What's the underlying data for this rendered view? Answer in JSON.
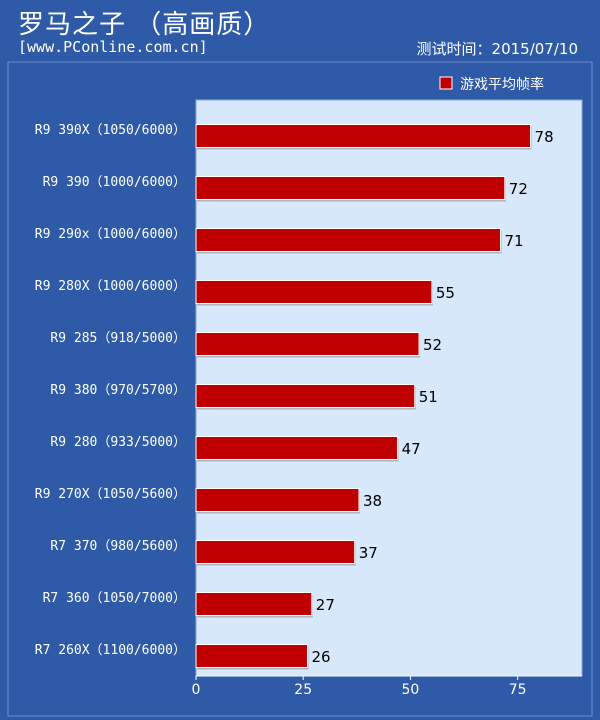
{
  "header": {
    "title": "罗马之子 （高画质）",
    "source": "[www.PConline.com.cn]",
    "test_time": "测试时间：2015/07/10"
  },
  "colors": {
    "background": "#2e5aa8",
    "plot_area": "#d6e8fa",
    "bar": "#c00000",
    "text": "#ffffff"
  },
  "chart_data": {
    "type": "bar",
    "orientation": "horizontal",
    "title": "罗马之子 （高画质）",
    "categories": [
      "R9 390X（1050/6000）",
      "R9 390（1000/6000）",
      "R9 290x（1000/6000）",
      "R9 280X（1000/6000）",
      "R9 285（918/5000）",
      "R9 380（970/5700）",
      "R9 280（933/5000）",
      "R9 270X（1050/5600）",
      "R7 370（980/5600）",
      "R7 360（1050/7000）",
      "R7 260X（1100/6000）"
    ],
    "series": [
      {
        "name": "游戏平均帧率",
        "values": [
          78,
          72,
          71,
          55,
          52,
          51,
          47,
          38,
          37,
          27,
          26
        ]
      }
    ],
    "xticks": [
      0,
      25,
      50,
      75
    ],
    "xlim": [
      0,
      90
    ],
    "grid": false,
    "legend": "top-right"
  }
}
